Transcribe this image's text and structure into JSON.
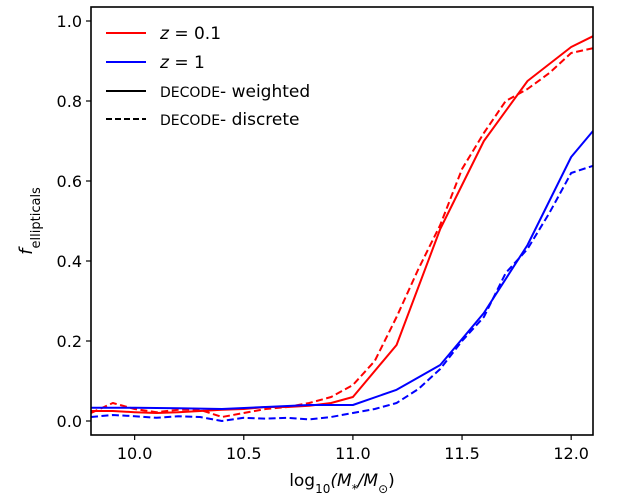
{
  "chart_data": {
    "type": "line",
    "xlabel": {
      "prefix": "log",
      "sub": "10",
      "arg": "(M",
      "star": "*",
      "slash": "/M",
      "sun": "⊙",
      "close": ")"
    },
    "ylabel": {
      "main": "f",
      "sub": "ellipticals"
    },
    "xlim": [
      9.8,
      12.1
    ],
    "ylim": [
      -0.035,
      1.035
    ],
    "x_ticks": [
      10.0,
      10.5,
      11.0,
      11.5,
      12.0
    ],
    "x_tick_labels": [
      "10.0",
      "10.5",
      "11.0",
      "11.5",
      "12.0"
    ],
    "y_ticks": [
      0.0,
      0.2,
      0.4,
      0.6,
      0.8,
      1.0
    ],
    "y_tick_labels": [
      "0.0",
      "0.2",
      "0.4",
      "0.6",
      "0.8",
      "1.0"
    ],
    "grid": false,
    "legend": {
      "placement": "top-left",
      "entries": [
        {
          "label_var": "z",
          "label_eq": " = 0.1",
          "color": "#ff0000",
          "style": "solid"
        },
        {
          "label_var": "z",
          "label_eq": " = 1",
          "color": "#0000ff",
          "style": "solid"
        },
        {
          "label_smallcaps": "DECODE",
          "label_rest": "- weighted",
          "color": "#000000",
          "style": "solid"
        },
        {
          "label_smallcaps": "DECODE",
          "label_rest": "- discrete",
          "color": "#000000",
          "style": "dashed"
        }
      ]
    },
    "series": [
      {
        "id": "z01-weighted",
        "color": "#ff0000",
        "style": "solid",
        "x": [
          9.8,
          9.9,
          10.0,
          10.1,
          10.2,
          10.3,
          10.4,
          10.5,
          10.6,
          10.7,
          10.8,
          10.9,
          11.0,
          11.2,
          11.4,
          11.6,
          11.8,
          12.0,
          12.1
        ],
        "y": [
          0.025,
          0.025,
          0.022,
          0.02,
          0.022,
          0.025,
          0.028,
          0.03,
          0.035,
          0.035,
          0.038,
          0.045,
          0.06,
          0.19,
          0.48,
          0.7,
          0.85,
          0.935,
          0.962
        ]
      },
      {
        "id": "z01-discrete",
        "color": "#ff0000",
        "style": "dashed",
        "x": [
          9.8,
          9.9,
          10.0,
          10.1,
          10.2,
          10.3,
          10.4,
          10.5,
          10.6,
          10.7,
          10.8,
          10.9,
          11.0,
          11.1,
          11.2,
          11.3,
          11.4,
          11.5,
          11.6,
          11.7,
          11.8,
          11.9,
          12.0,
          12.1
        ],
        "y": [
          0.02,
          0.045,
          0.03,
          0.022,
          0.028,
          0.028,
          0.01,
          0.02,
          0.03,
          0.035,
          0.045,
          0.06,
          0.09,
          0.15,
          0.26,
          0.38,
          0.49,
          0.63,
          0.72,
          0.8,
          0.83,
          0.87,
          0.92,
          0.932
        ]
      },
      {
        "id": "z1-weighted",
        "color": "#0000ff",
        "style": "solid",
        "x": [
          9.8,
          10.0,
          10.2,
          10.4,
          10.6,
          10.8,
          11.0,
          11.2,
          11.4,
          11.6,
          11.8,
          12.0,
          12.1
        ],
        "y": [
          0.033,
          0.033,
          0.032,
          0.03,
          0.035,
          0.04,
          0.04,
          0.078,
          0.14,
          0.27,
          0.44,
          0.66,
          0.725
        ]
      },
      {
        "id": "z1-discrete",
        "color": "#0000ff",
        "style": "dashed",
        "x": [
          9.8,
          9.9,
          10.0,
          10.1,
          10.2,
          10.3,
          10.4,
          10.5,
          10.6,
          10.7,
          10.8,
          10.9,
          11.0,
          11.1,
          11.2,
          11.3,
          11.4,
          11.5,
          11.6,
          11.7,
          11.8,
          11.9,
          12.0,
          12.1
        ],
        "y": [
          0.01,
          0.015,
          0.012,
          0.008,
          0.012,
          0.01,
          0.0,
          0.008,
          0.006,
          0.008,
          0.004,
          0.01,
          0.02,
          0.03,
          0.045,
          0.08,
          0.13,
          0.2,
          0.26,
          0.37,
          0.43,
          0.52,
          0.62,
          0.638
        ]
      }
    ]
  }
}
